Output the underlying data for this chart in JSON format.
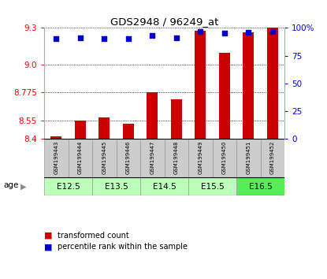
{
  "title": "GDS2948 / 96249_at",
  "samples": [
    "GSM199443",
    "GSM199444",
    "GSM199445",
    "GSM199446",
    "GSM199447",
    "GSM199448",
    "GSM199449",
    "GSM199450",
    "GSM199451",
    "GSM199452"
  ],
  "transformed_count": [
    8.42,
    8.55,
    8.57,
    8.525,
    8.775,
    8.72,
    9.275,
    9.1,
    9.265,
    9.3
  ],
  "percentile_rank": [
    90,
    91,
    90,
    90,
    93,
    91,
    97,
    95,
    96,
    97
  ],
  "ylim_left": [
    8.4,
    9.3
  ],
  "ylim_right": [
    0,
    100
  ],
  "yticks_left": [
    8.4,
    8.55,
    8.775,
    9.0,
    9.3
  ],
  "yticks_right": [
    0,
    25,
    50,
    75,
    100
  ],
  "age_groups": [
    {
      "label": "E12.5",
      "start": 0,
      "end": 1
    },
    {
      "label": "E13.5",
      "start": 2,
      "end": 3
    },
    {
      "label": "E14.5",
      "start": 4,
      "end": 5
    },
    {
      "label": "E15.5",
      "start": 6,
      "end": 7
    },
    {
      "label": "E16.5",
      "start": 8,
      "end": 9
    }
  ],
  "age_colors": [
    "#bbffbb",
    "#bbffbb",
    "#bbffbb",
    "#bbffbb",
    "#55ee55"
  ],
  "bar_color": "#cc0000",
  "dot_color": "#0000cc",
  "bg_color": "#ffffff",
  "label_bg": "#cccccc",
  "label_sep_color": "#999999"
}
